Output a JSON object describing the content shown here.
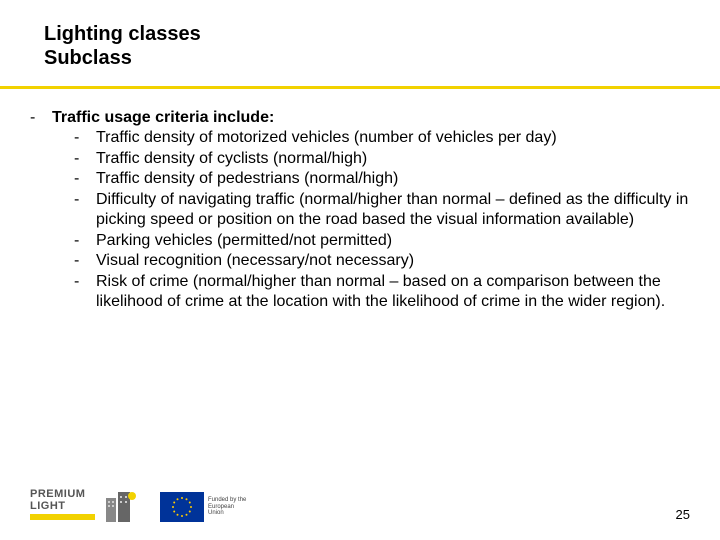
{
  "colors": {
    "divider": "#f2d200",
    "text": "#000000",
    "bg": "#ffffff",
    "eu_flag_bg": "#003399",
    "eu_star": "#ffcc00",
    "logo_gray": "#555555",
    "logo_yellow": "#f2d200"
  },
  "title": {
    "line1": "Lighting classes",
    "line2": "Subclass",
    "fontsize": 20,
    "fontweight": "bold"
  },
  "content": {
    "fontsize": 16,
    "heading": "Traffic usage criteria include:",
    "items": [
      "Traffic density of motorized vehicles (number of  vehicles per day)",
      "Traffic density of cyclists (normal/high)",
      "Traffic density of pedestrians (normal/high)",
      "Difficulty of navigating traffic (normal/higher than normal – defined as the difficulty in picking speed or position on the road based the visual information available)",
      "Parking vehicles (permitted/not permitted)",
      "Visual recognition (necessary/not necessary)",
      "Risk of crime (normal/higher than normal – based on a comparison between the likelihood of crime at the location with the likelihood of crime in the wider region)."
    ]
  },
  "footer": {
    "premium_top": "PREMIUM",
    "premium_bot": "LIGHT",
    "eu_caption": "Funded by the European Union",
    "page_number": "25"
  }
}
